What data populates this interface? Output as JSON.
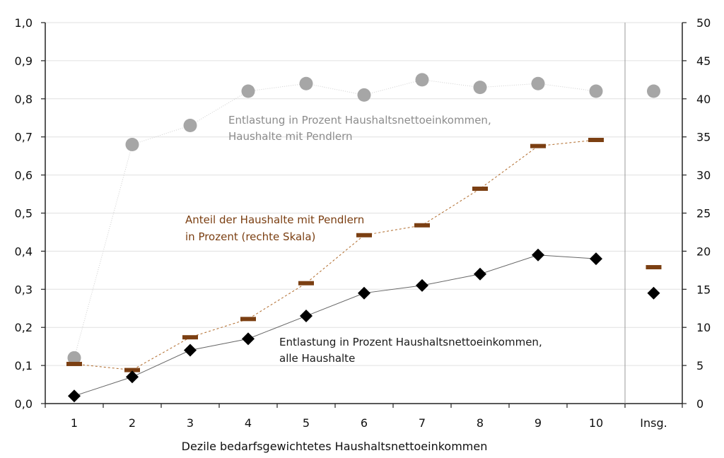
{
  "chart_data": {
    "type": "line",
    "categories": [
      "1",
      "2",
      "3",
      "4",
      "5",
      "6",
      "7",
      "8",
      "9",
      "10",
      "Insg."
    ],
    "xlabel": "Dezile bedarfsgewichtetes Haushaltsnettoeinkommen",
    "y_left": {
      "range": [
        0,
        1.0
      ],
      "ticks": [
        "0,0",
        "0,1",
        "0,2",
        "0,3",
        "0,4",
        "0,5",
        "0,6",
        "0,7",
        "0,8",
        "0,9",
        "1,0"
      ]
    },
    "y_right": {
      "range": [
        0,
        50
      ],
      "ticks": [
        "0",
        "5",
        "10",
        "15",
        "20",
        "25",
        "30",
        "35",
        "40",
        "45",
        "50"
      ]
    },
    "grid": true,
    "series": [
      {
        "name": "Entlastung in Prozent Haushaltsnettoeinkommen, Haushalte mit Pendlern",
        "label_lines": [
          "Entlastung in Prozent Haushaltsnettoeinkommen,",
          "Haushalte mit Pendlern"
        ],
        "axis": "left",
        "marker": "circle",
        "color": "#a6a6a6",
        "line_color": "#cfcfcf",
        "values": [
          0.12,
          0.68,
          0.73,
          0.82,
          0.84,
          0.81,
          0.85,
          0.83,
          0.84,
          0.82,
          0.82
        ]
      },
      {
        "name": "Anteil der Haushalte mit Pendlern in Prozent (rechte Skala)",
        "label_lines": [
          "Anteil der Haushalte mit Pendlern",
          "in Prozent (rechte Skala)"
        ],
        "axis": "right",
        "marker": "dash",
        "color": "#7b3f12",
        "line_color": "#b06a2a",
        "values": [
          5.2,
          4.4,
          8.7,
          11.1,
          15.8,
          22.1,
          23.4,
          28.2,
          33.8,
          34.6,
          17.9
        ]
      },
      {
        "name": "Entlastung in Prozent Haushaltsnettoeinkommen, alle Haushalte",
        "label_lines": [
          "Entlastung in Prozent Haushaltsnettoeinkommen,",
          "alle Haushalte"
        ],
        "axis": "left",
        "marker": "diamond",
        "color": "#000000",
        "line_color": "#666666",
        "values": [
          0.02,
          0.07,
          0.14,
          0.17,
          0.23,
          0.29,
          0.31,
          0.34,
          0.39,
          0.38,
          0.29
        ]
      }
    ]
  }
}
